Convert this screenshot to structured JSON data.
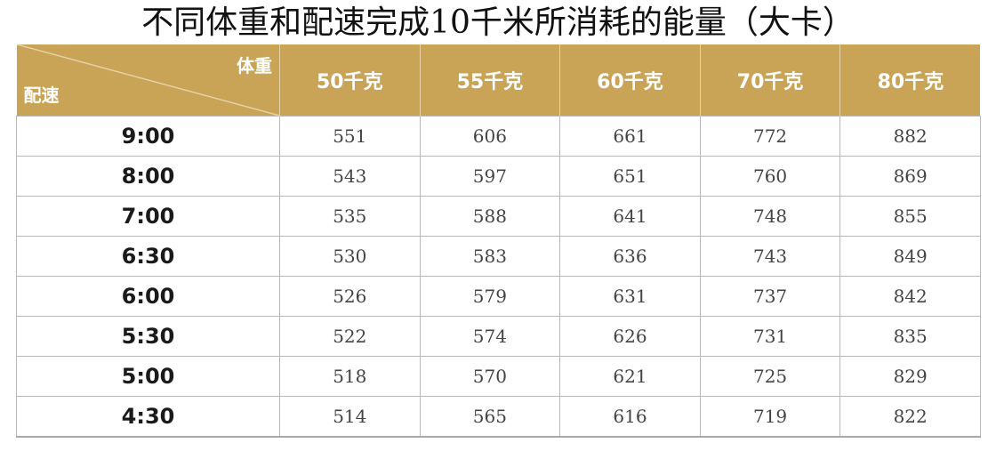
{
  "title": "不同体重和配速完成10千米所消耗的能量（大卡）",
  "header": {
    "corner_top": "体重",
    "corner_bottom": "配速",
    "weights": [
      "50千克",
      "55千克",
      "60千克",
      "70千克",
      "80千克"
    ]
  },
  "colors": {
    "header_bg": "#c9a457",
    "header_text": "#ffffff",
    "grid": "#b8b8b8"
  },
  "rows": [
    {
      "pace": "9:00",
      "values": [
        "551",
        "606",
        "661",
        "772",
        "882"
      ]
    },
    {
      "pace": "8:00",
      "values": [
        "543",
        "597",
        "651",
        "760",
        "869"
      ]
    },
    {
      "pace": "7:00",
      "values": [
        "535",
        "588",
        "641",
        "748",
        "855"
      ]
    },
    {
      "pace": "6:30",
      "values": [
        "530",
        "583",
        "636",
        "743",
        "849"
      ]
    },
    {
      "pace": "6:00",
      "values": [
        "526",
        "579",
        "631",
        "737",
        "842"
      ]
    },
    {
      "pace": "5:30",
      "values": [
        "522",
        "574",
        "626",
        "731",
        "835"
      ]
    },
    {
      "pace": "5:00",
      "values": [
        "518",
        "570",
        "621",
        "725",
        "829"
      ]
    },
    {
      "pace": "4:30",
      "values": [
        "514",
        "565",
        "616",
        "719",
        "822"
      ]
    }
  ]
}
